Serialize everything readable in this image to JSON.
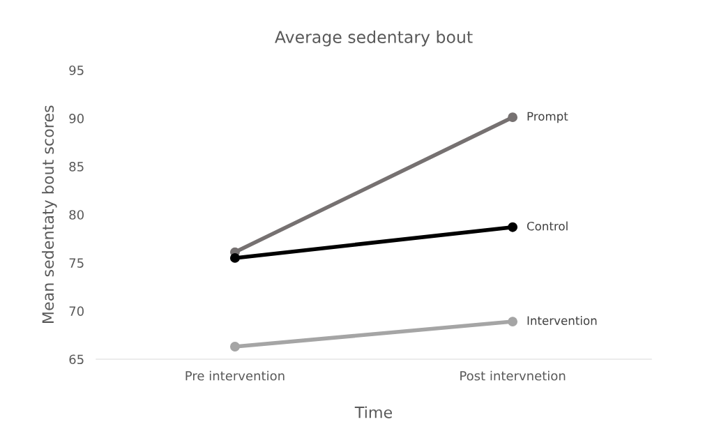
{
  "chart_data": {
    "type": "line",
    "title": "Average sedentary bout",
    "xlabel": "Time",
    "ylabel": "Mean sedentaty bout scores",
    "categories": [
      "Pre intervention",
      "Post intervnetion"
    ],
    "series": [
      {
        "name": "Prompt",
        "color": "#767171",
        "values": [
          76.1,
          90.1
        ]
      },
      {
        "name": "Control",
        "color": "#000000",
        "values": [
          75.5,
          78.7
        ]
      },
      {
        "name": "Intervention",
        "color": "#a5a5a5",
        "values": [
          66.3,
          68.9
        ]
      }
    ],
    "ylim": [
      65,
      95
    ],
    "yticks": [
      65,
      70,
      75,
      80,
      85,
      90,
      95
    ],
    "grid": false,
    "legend": false,
    "marker": "circle",
    "line_style": "solid"
  }
}
